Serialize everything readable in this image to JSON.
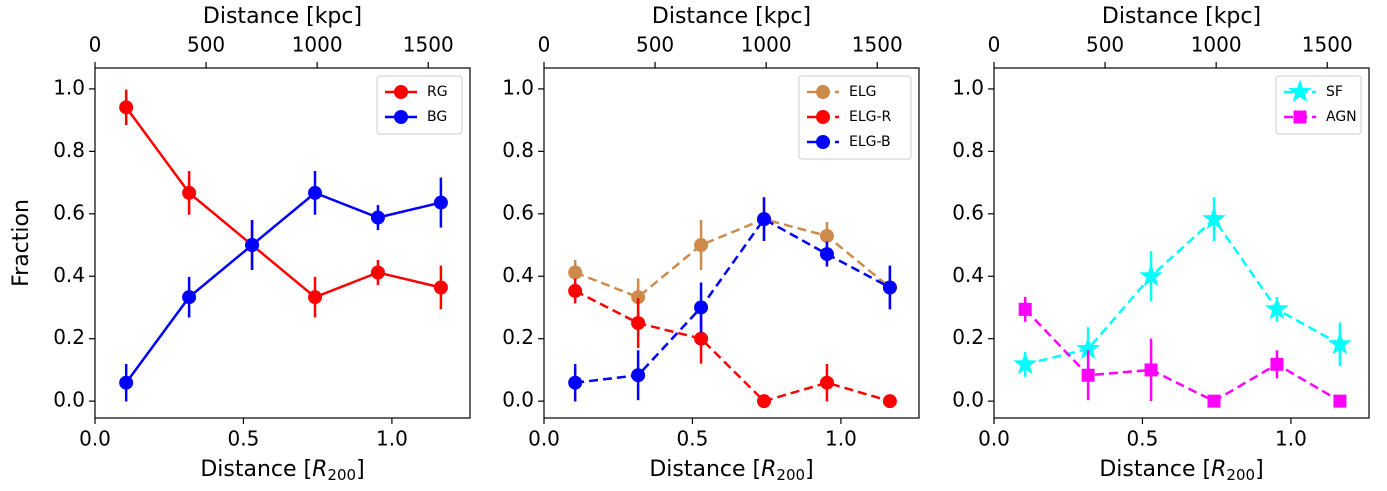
{
  "chart_data": [
    {
      "type": "line",
      "xlabel": [
        "Distance [",
        "R",
        "200",
        "]"
      ],
      "ylabel": "Fraction",
      "x2label": "Distance [kpc]",
      "xlim": [
        0,
        1.263
      ],
      "x2lim": [
        0,
        1688
      ],
      "ylim": [
        -0.054,
        1.067
      ],
      "xticks": [
        {
          "value": 0,
          "label": "0.0"
        },
        {
          "value": 0.5,
          "label": "0.5"
        },
        {
          "value": 1,
          "label": "1.0"
        }
      ],
      "x2ticks": [
        0,
        500,
        1000,
        1500
      ],
      "yticks": [
        {
          "value": 0,
          "label": "0.0"
        },
        {
          "value": 0.2,
          "label": "0.2"
        },
        {
          "value": 0.4,
          "label": "0.4"
        },
        {
          "value": 0.6,
          "label": "0.6"
        },
        {
          "value": 0.8,
          "label": "0.8"
        },
        {
          "value": 1,
          "label": "1.0"
        }
      ],
      "legend": "upper right",
      "linestyle": "solid",
      "x": [
        0.105,
        0.317,
        0.529,
        0.741,
        0.953,
        1.165
      ],
      "series": [
        {
          "name": "RG",
          "color": "#ff0000",
          "marker": "circle",
          "values": [
            0.941,
            0.667,
            0.5,
            0.333,
            0.412,
            0.364
          ],
          "errors": [
            0.057,
            0.07,
            0.08,
            0.065,
            0.04,
            0.07
          ]
        },
        {
          "name": "BG",
          "color": "#0000ff",
          "marker": "circle",
          "values": [
            0.059,
            0.333,
            0.5,
            0.667,
            0.588,
            0.636
          ],
          "errors": [
            0.06,
            0.065,
            0.08,
            0.07,
            0.04,
            0.08
          ]
        }
      ]
    },
    {
      "type": "line",
      "xlabel": [
        "Distance [",
        "R",
        "200",
        "]"
      ],
      "x2label": "Distance [kpc]",
      "xlim": [
        0,
        1.263
      ],
      "x2lim": [
        0,
        1688
      ],
      "ylim": [
        -0.054,
        1.067
      ],
      "xticks": [
        {
          "value": 0,
          "label": "0.0"
        },
        {
          "value": 0.5,
          "label": "0.5"
        },
        {
          "value": 1,
          "label": "1.0"
        }
      ],
      "x2ticks": [
        0,
        500,
        1000,
        1500
      ],
      "yticks": [
        {
          "value": 0,
          "label": "0.0"
        },
        {
          "value": 0.2,
          "label": "0.2"
        },
        {
          "value": 0.4,
          "label": "0.4"
        },
        {
          "value": 0.6,
          "label": "0.6"
        },
        {
          "value": 0.8,
          "label": "0.8"
        },
        {
          "value": 1,
          "label": "1.0"
        }
      ],
      "legend": "upper right",
      "linestyle": "dashed",
      "x": [
        0.105,
        0.317,
        0.529,
        0.741,
        0.953,
        1.165
      ],
      "series": [
        {
          "name": "ELG",
          "color": "#cd8a4a",
          "marker": "circle",
          "values": [
            0.412,
            0.333,
            0.5,
            0.583,
            0.529,
            0.364
          ],
          "errors": [
            0.04,
            0.06,
            0.08,
            0.07,
            0.045,
            0.07
          ]
        },
        {
          "name": "ELG-R",
          "color": "#ff0000",
          "marker": "circle",
          "values": [
            0.353,
            0.25,
            0.2,
            0,
            0.059,
            0
          ],
          "errors": [
            0.04,
            0.08,
            0.08,
            0,
            0.06,
            0
          ]
        },
        {
          "name": "ELG-B",
          "color": "#0000ff",
          "marker": "circle",
          "values": [
            0.059,
            0.083,
            0.3,
            0.583,
            0.471,
            0.364
          ],
          "errors": [
            0.06,
            0.08,
            0.08,
            0.07,
            0.04,
            0.07
          ]
        }
      ]
    },
    {
      "type": "line",
      "xlabel": [
        "Distance [",
        "R",
        "200",
        "]"
      ],
      "x2label": "Distance [kpc]",
      "xlim": [
        0,
        1.263
      ],
      "x2lim": [
        0,
        1688
      ],
      "ylim": [
        -0.054,
        1.067
      ],
      "xticks": [
        {
          "value": 0,
          "label": "0.0"
        },
        {
          "value": 0.5,
          "label": "0.5"
        },
        {
          "value": 1,
          "label": "1.0"
        }
      ],
      "x2ticks": [
        0,
        500,
        1000,
        1500
      ],
      "yticks": [
        {
          "value": 0,
          "label": "0.0"
        },
        {
          "value": 0.2,
          "label": "0.2"
        },
        {
          "value": 0.4,
          "label": "0.4"
        },
        {
          "value": 0.6,
          "label": "0.6"
        },
        {
          "value": 0.8,
          "label": "0.8"
        },
        {
          "value": 1,
          "label": "1.0"
        }
      ],
      "legend": "upper right",
      "linestyle": "dashed",
      "x": [
        0.105,
        0.317,
        0.529,
        0.741,
        0.953,
        1.165
      ],
      "series": [
        {
          "name": "SF",
          "color": "#00ffff",
          "marker": "star",
          "values": [
            0.118,
            0.167,
            0.4,
            0.583,
            0.294,
            0.182
          ],
          "errors": [
            0.04,
            0.07,
            0.08,
            0.07,
            0.04,
            0.07
          ]
        },
        {
          "name": "AGN",
          "color": "#ff00ff",
          "marker": "square",
          "values": [
            0.294,
            0.083,
            0.1,
            0,
            0.118,
            0
          ],
          "errors": [
            0.04,
            0.08,
            0.1,
            0,
            0.045,
            0
          ]
        }
      ]
    }
  ]
}
